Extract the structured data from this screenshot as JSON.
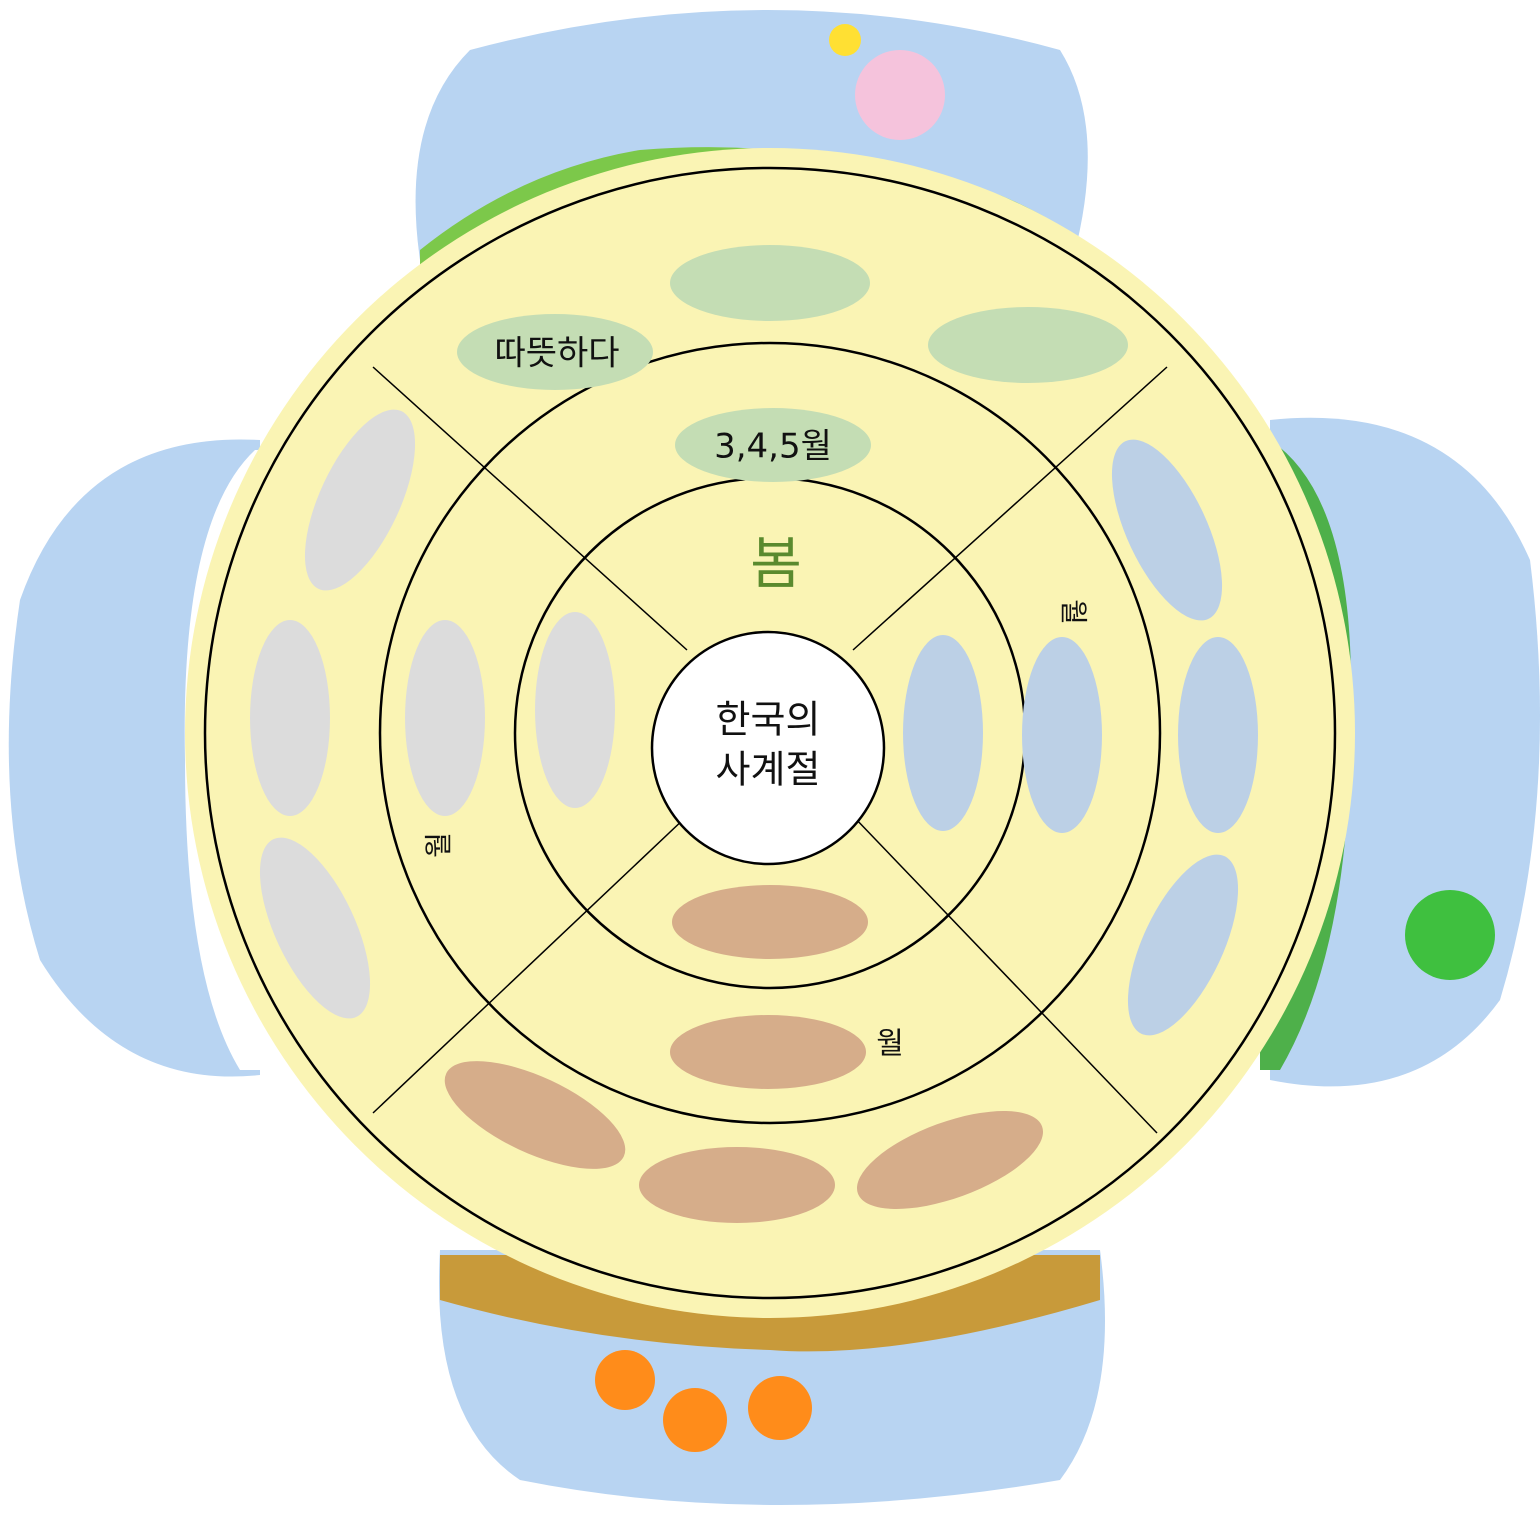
{
  "center": {
    "lines": [
      "한국의",
      "사계절"
    ]
  },
  "season": "봄",
  "months": "3,4,5월",
  "feature": "따뜻하다",
  "labels": {
    "summer": "월",
    "winter": "월",
    "autumn": "월"
  }
}
